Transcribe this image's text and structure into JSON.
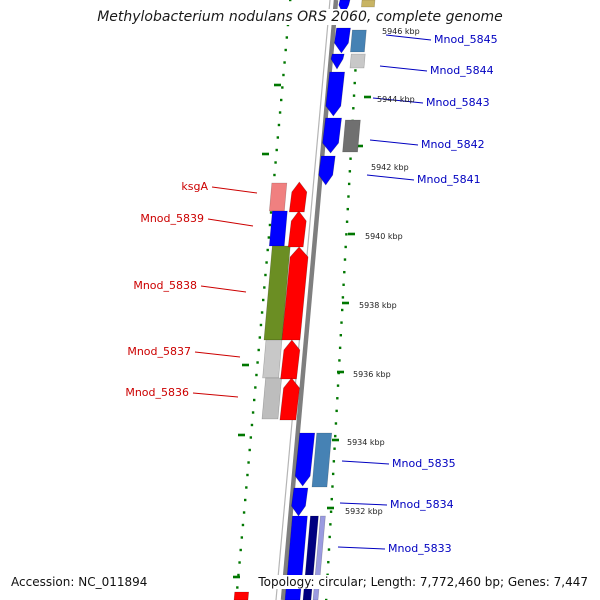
{
  "title": "Methylobacterium nodulans ORS 2060, complete genome",
  "footer": {
    "accession": "Accession: NC_011894",
    "topology": "Topology: circular; Length: 7,772,460 bp; Genes: 7,447"
  },
  "ticks": [
    "5946 kbp",
    "5944 kbp",
    "5942 kbp",
    "5940 kbp",
    "5938 kbp",
    "5936 kbp",
    "5934 kbp",
    "5932 kbp"
  ],
  "genes_left": [
    "ksgA",
    "Mnod_5839",
    "Mnod_5838",
    "Mnod_5837",
    "Mnod_5836"
  ],
  "genes_right": [
    "Mnod_5845",
    "Mnod_5844",
    "Mnod_5843",
    "Mnod_5842",
    "Mnod_5841",
    "Mnod_5835",
    "Mnod_5834",
    "Mnod_5833"
  ],
  "colors": {
    "backbone": "#7f7f7f",
    "strand_red": "#ff0000",
    "strand_blue": "#0000ff",
    "label_red": "#cc0000",
    "label_blue": "#0000c0",
    "green_dots": "#007700",
    "cog_pink": "#f08080",
    "cog_olive": "#6b8e23",
    "cog_steel": "#4682b4",
    "cog_light_gray": "#c8c8c8",
    "cog_dark_gray": "#707070",
    "cog_navy": "#000080",
    "cog_khaki": "#c8b464"
  }
}
